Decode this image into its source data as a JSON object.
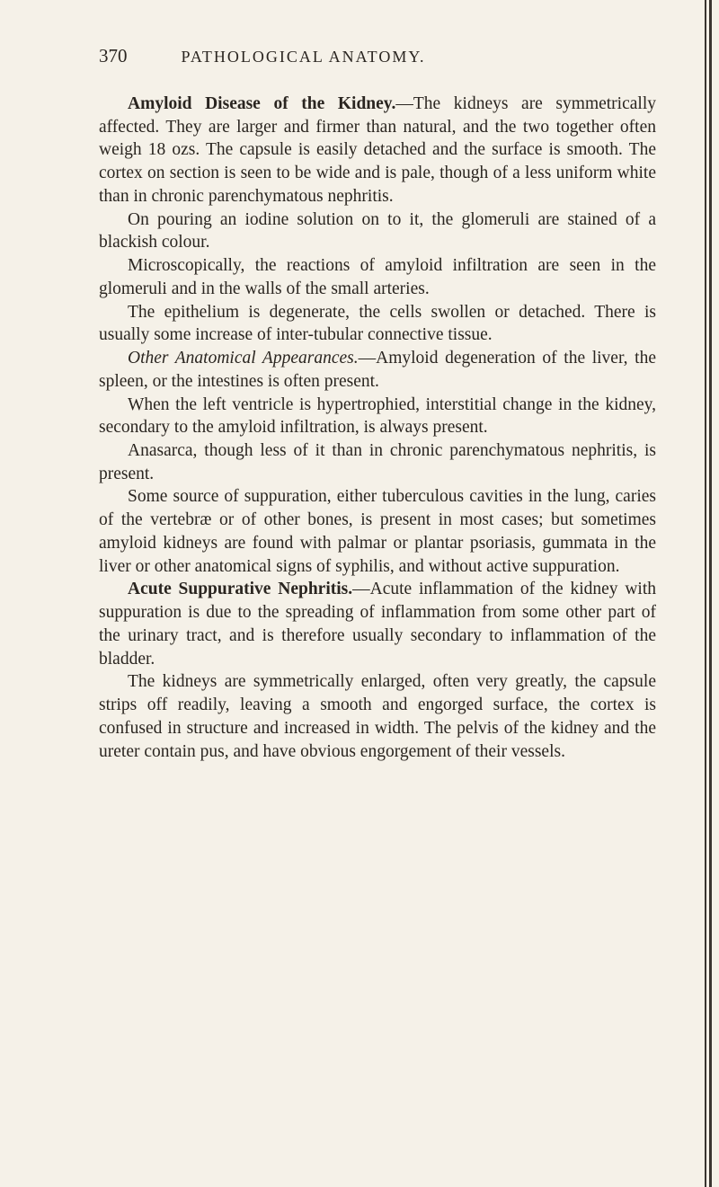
{
  "header": {
    "page_number": "370",
    "title": "PATHOLOGICAL ANATOMY."
  },
  "paragraphs": {
    "p1_bold": "Amyloid Disease of the Kidney.",
    "p1_rest": "—The kidneys are symmetrically affected. They are larger and firmer than natural, and the two together often weigh 18 ozs. The capsule is easily detached and the surface is smooth. The cortex on section is seen to be wide and is pale, though of a less uniform white than in chronic parenchymatous nephritis.",
    "p2": "On pouring an iodine solution on to it, the glomeruli are stained of a blackish colour.",
    "p3": "Microscopically, the reactions of amyloid infiltration are seen in the glomeruli and in the walls of the small arteries.",
    "p4": "The epithelium is degenerate, the cells swollen or detached. There is usually some increase of inter-tubular connective tissue.",
    "p5_italic": "Other Anatomical Appearances.",
    "p5_rest": "—Amyloid degeneration of the liver, the spleen, or the intestines is often present.",
    "p6": "When the left ventricle is hypertrophied, interstitial change in the kidney, secondary to the amyloid infiltration, is always present.",
    "p7": "Anasarca, though less of it than in chronic parenchymatous nephritis, is present.",
    "p8": "Some source of suppuration, either tuberculous cavities in the lung, caries of the vertebræ or of other bones, is present in most cases; but sometimes amyloid kidneys are found with palmar or plantar psoriasis, gummata in the liver or other anatomical signs of syphilis, and without active suppuration.",
    "p9_bold": "Acute Suppurative Nephritis.",
    "p9_rest": "—Acute inflammation of the kidney with suppuration is due to the spreading of inflammation from some other part of the urinary tract, and is therefore usually secondary to inflammation of the bladder.",
    "p10": "The kidneys are symmetrically enlarged, often very greatly, the capsule strips off readily, leaving a smooth and engorged surface, the cortex is confused in structure and increased in width. The pelvis of the kidney and the ureter contain pus, and have obvious engorgement of their vessels."
  },
  "colors": {
    "background": "#f5f1e8",
    "text": "#2a2520",
    "border": "#3a3530"
  },
  "typography": {
    "body_fontsize": 19.5,
    "header_fontsize": 18,
    "pagenum_fontsize": 21,
    "line_height": 1.32,
    "font_family": "Georgia, Times New Roman, serif"
  }
}
